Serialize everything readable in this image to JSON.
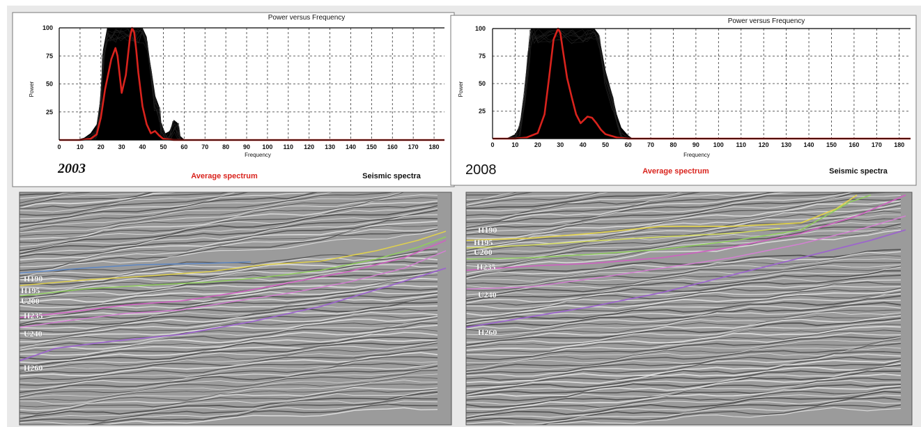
{
  "chart_data": [
    {
      "type": "area",
      "title": "Power versus Frequency",
      "year_label": "2003",
      "xlabel": "Frequency",
      "ylabel": "Power",
      "xlim": [
        0,
        185
      ],
      "ylim": [
        0,
        100
      ],
      "x_ticks": [
        0,
        10,
        20,
        30,
        40,
        50,
        60,
        70,
        80,
        90,
        100,
        110,
        120,
        130,
        140,
        150,
        160,
        170,
        180
      ],
      "y_ticks": [
        25,
        50,
        75,
        100
      ],
      "grid": true,
      "series": [
        {
          "name": "Average spectrum",
          "color": "#d9231d",
          "x": [
            0,
            10,
            15,
            18,
            20,
            22,
            25,
            27,
            28,
            30,
            32,
            34,
            35,
            36,
            37,
            38,
            40,
            42,
            44,
            46,
            48,
            50,
            55,
            60,
            185
          ],
          "y": [
            0,
            0,
            1,
            5,
            20,
            45,
            72,
            82,
            75,
            42,
            58,
            92,
            100,
            96,
            80,
            60,
            30,
            14,
            6,
            8,
            4,
            1,
            0,
            0,
            0
          ]
        },
        {
          "name": "Seismic spectra",
          "color": "#000000",
          "upper_x": [
            8,
            12,
            15,
            18,
            20,
            21,
            23,
            25,
            27,
            30,
            33,
            36,
            38,
            40,
            42,
            44,
            46,
            48,
            49,
            51,
            53,
            55,
            57,
            58,
            60
          ],
          "upper_y": [
            0,
            2,
            6,
            14,
            35,
            80,
            100,
            100,
            100,
            100,
            100,
            100,
            100,
            100,
            92,
            65,
            40,
            30,
            15,
            6,
            8,
            18,
            15,
            4,
            0
          ]
        }
      ]
    },
    {
      "type": "area",
      "title": "Power versus Frequency",
      "year_label": "2008",
      "xlabel": "Frequency",
      "ylabel": "Power",
      "xlim": [
        0,
        185
      ],
      "ylim": [
        0,
        100
      ],
      "x_ticks": [
        0,
        10,
        20,
        30,
        40,
        50,
        60,
        70,
        80,
        90,
        100,
        110,
        120,
        130,
        140,
        150,
        160,
        170,
        180
      ],
      "y_ticks": [
        25,
        50,
        75,
        100
      ],
      "grid": true,
      "series": [
        {
          "name": "Average spectrum",
          "color": "#d9231d",
          "x": [
            0,
            10,
            15,
            20,
            23,
            25,
            27,
            29,
            30,
            31,
            33,
            35,
            37,
            39,
            40,
            42,
            44,
            46,
            48,
            50,
            55,
            60,
            185
          ],
          "y": [
            0,
            0,
            1,
            5,
            22,
            55,
            90,
            100,
            96,
            82,
            55,
            38,
            22,
            14,
            16,
            20,
            19,
            14,
            8,
            4,
            1,
            0,
            0
          ]
        },
        {
          "name": "Seismic spectra",
          "color": "#000000",
          "upper_x": [
            6,
            10,
            12,
            14,
            16,
            17,
            18,
            20,
            25,
            30,
            35,
            40,
            42,
            45,
            47,
            50,
            53,
            55,
            57,
            60,
            62
          ],
          "upper_y": [
            0,
            4,
            12,
            40,
            80,
            100,
            100,
            100,
            100,
            100,
            100,
            100,
            100,
            100,
            95,
            62,
            40,
            22,
            10,
            3,
            0
          ]
        }
      ]
    }
  ],
  "seismic_sections": [
    {
      "name": "2003 seismic section",
      "horizons": [
        {
          "label": "H190",
          "color": "#5b86c5"
        },
        {
          "label": "H195",
          "color": "#e3d34a"
        },
        {
          "label": "U200",
          "color": "#8ed05a"
        },
        {
          "label": "H235",
          "color": "#cd62c1"
        },
        {
          "label": "U240",
          "color": "#d77ed6"
        },
        {
          "label": "H260",
          "color": "#9c62cf"
        }
      ]
    },
    {
      "name": "2008 seismic section",
      "horizons": [
        {
          "label": "H190",
          "color": "#e3d34a"
        },
        {
          "label": "H195",
          "color": "#d9e058"
        },
        {
          "label": "U200",
          "color": "#8ed05a"
        },
        {
          "label": "H235",
          "color": "#cd62c1"
        },
        {
          "label": "U240",
          "color": "#d77ed6"
        },
        {
          "label": "H260",
          "color": "#9c62cf"
        }
      ]
    }
  ]
}
